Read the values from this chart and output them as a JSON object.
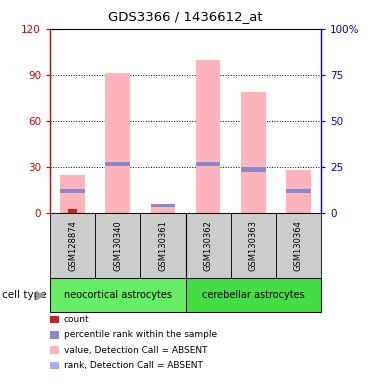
{
  "title": "GDS3366 / 1436612_at",
  "samples": [
    "GSM128874",
    "GSM130340",
    "GSM130361",
    "GSM130362",
    "GSM130363",
    "GSM130364"
  ],
  "pink_values": [
    25,
    91,
    5,
    100,
    79,
    28
  ],
  "blue_rank_values": [
    3,
    2,
    2,
    2,
    3,
    3
  ],
  "blue_rank_bottom": [
    13,
    31,
    4,
    31,
    27,
    13
  ],
  "red_count_values": [
    3,
    0,
    0,
    0,
    0,
    0
  ],
  "ylim_left": [
    0,
    120
  ],
  "ylim_right": [
    0,
    100
  ],
  "yticks_left": [
    0,
    30,
    60,
    90,
    120
  ],
  "ytick_labels_left": [
    "0",
    "30",
    "60",
    "90",
    "120"
  ],
  "yticks_right": [
    0,
    25,
    50,
    75,
    100
  ],
  "ytick_labels_right": [
    "0",
    "25",
    "50",
    "75",
    "100%"
  ],
  "pink_color": "#ffb3ba",
  "blue_color": "#8888cc",
  "light_blue_color": "#aaaaee",
  "red_color": "#cc2222",
  "left_tick_color": "#cc0000",
  "right_tick_color": "#0000cc",
  "group1_color": "#66ee66",
  "group2_color": "#44dd44",
  "gray_color": "#cccccc",
  "neocortical_label": "neocortical astrocytes",
  "cerebellar_label": "cerebellar astrocytes",
  "cell_type_label": "cell type",
  "legend_items": [
    {
      "color": "#cc2222",
      "label": "count"
    },
    {
      "color": "#8888cc",
      "label": "percentile rank within the sample"
    },
    {
      "color": "#ffb3ba",
      "label": "value, Detection Call = ABSENT"
    },
    {
      "color": "#aaaaee",
      "label": "rank, Detection Call = ABSENT"
    }
  ]
}
